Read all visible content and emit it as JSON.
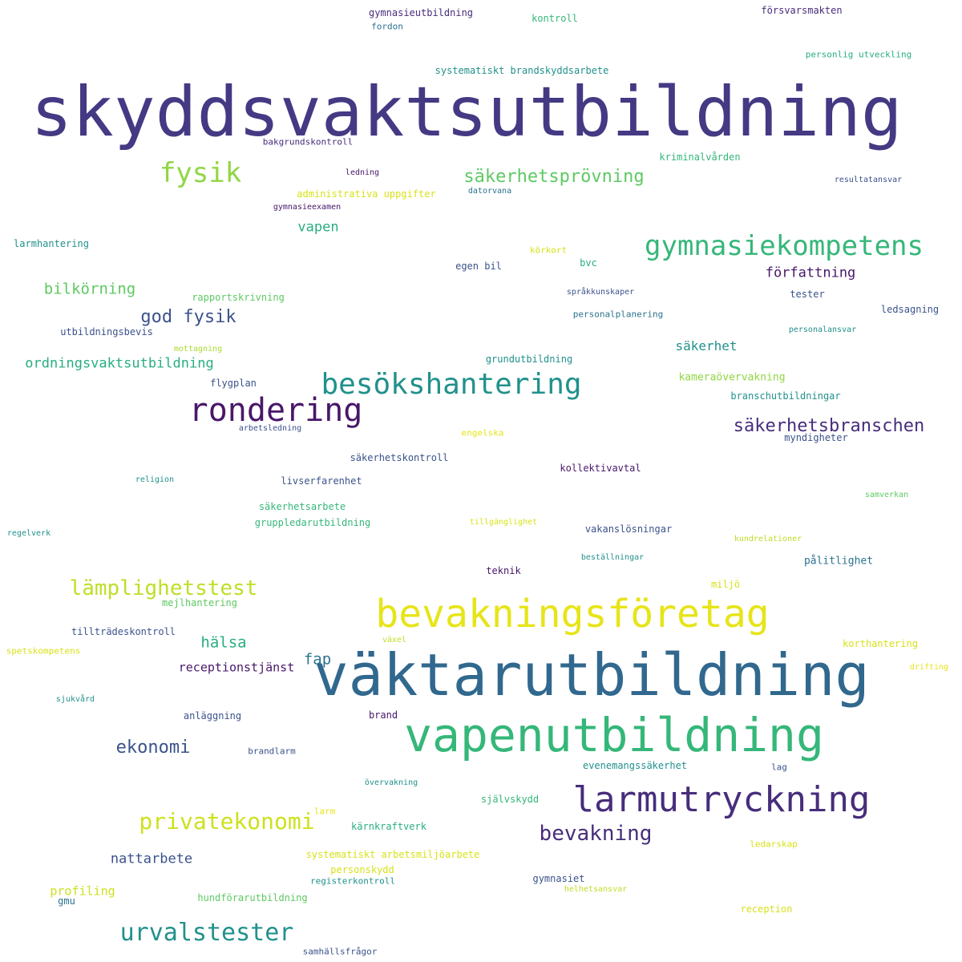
{
  "palette": {
    "indigo": "#443983",
    "deep_purple": "#481769",
    "dark_purple": "#472d7b",
    "blue": "#31688e",
    "steel_blue": "#3b528b",
    "teal": "#21918c",
    "teal_blue": "#2c728e",
    "sea_green": "#28ae80",
    "green": "#35b779",
    "light_green": "#5ec962",
    "lime": "#90d743",
    "yellow_green": "#addc30",
    "yellow": "#e7e419",
    "bright_yellow": "#fde725"
  },
  "words": [
    {
      "text": "skyddsvaktsutbildning",
      "color": "#443983"
    },
    {
      "text": "väktarutbildning",
      "color": "#31688e"
    },
    {
      "text": "vapenutbildning",
      "color": "#35b779"
    },
    {
      "text": "bevakningsföretag",
      "color": "#e7e419"
    },
    {
      "text": "larmutryckning",
      "color": "#472d7b"
    },
    {
      "text": "rondering",
      "color": "#481769"
    },
    {
      "text": "besökshantering",
      "color": "#21918c"
    },
    {
      "text": "gymnasiekompetens",
      "color": "#35b779"
    },
    {
      "text": "fysik",
      "color": "#90d743"
    },
    {
      "text": "urvalstester",
      "color": "#21918c"
    },
    {
      "text": "privatekonomi",
      "color": "#cde11d"
    },
    {
      "text": "lämplighetstest",
      "color": "#bddf26"
    },
    {
      "text": "bevakning",
      "color": "#472d7b"
    },
    {
      "text": "säkerhetsbranschen",
      "color": "#472d7b"
    },
    {
      "text": "säkerhetsprövning",
      "color": "#5ec962"
    },
    {
      "text": "god fysik",
      "color": "#3b528b"
    },
    {
      "text": "ekonomi",
      "color": "#3b528b"
    },
    {
      "text": "ordningsvaktsutbildning",
      "color": "#28ae80"
    },
    {
      "text": "bilkörning",
      "color": "#5ec962"
    },
    {
      "text": "hälsa",
      "color": "#28ae80"
    },
    {
      "text": "fap",
      "color": "#2c728e"
    },
    {
      "text": "författning",
      "color": "#481769"
    },
    {
      "text": "nattarbete",
      "color": "#3b528b"
    },
    {
      "text": "vapen",
      "color": "#28ae80"
    },
    {
      "text": "säkerhet",
      "color": "#21918c"
    },
    {
      "text": "receptionstjänst",
      "color": "#481769"
    },
    {
      "text": "profiling",
      "color": "#cde11d"
    },
    {
      "text": "gymnasieutbildning",
      "color": "#472d7b"
    },
    {
      "text": "fordon",
      "color": "#2c728e"
    },
    {
      "text": "kontroll",
      "color": "#35b779"
    },
    {
      "text": "försvarsmakten",
      "color": "#472d7b"
    },
    {
      "text": "personlig utveckling",
      "color": "#28ae80"
    },
    {
      "text": "systematiskt brandskyddsarbete",
      "color": "#21918c"
    },
    {
      "text": "bakgrundskontroll",
      "color": "#472d7b"
    },
    {
      "text": "kriminalvården",
      "color": "#35b779"
    },
    {
      "text": "ledning",
      "color": "#481769"
    },
    {
      "text": "datorvana",
      "color": "#2c728e"
    },
    {
      "text": "resultatansvar",
      "color": "#3b528b"
    },
    {
      "text": "administrativa uppgifter",
      "color": "#d8e219"
    },
    {
      "text": "gymnasieexamen",
      "color": "#481769"
    },
    {
      "text": "larmhantering",
      "color": "#21918c"
    },
    {
      "text": "körkort",
      "color": "#d8e219"
    },
    {
      "text": "bvc",
      "color": "#28ae80"
    },
    {
      "text": "egen bil",
      "color": "#3b528b"
    },
    {
      "text": "rapportskrivning",
      "color": "#5ec962"
    },
    {
      "text": "språkkunskaper",
      "color": "#3b528b"
    },
    {
      "text": "tester",
      "color": "#3b528b"
    },
    {
      "text": "ledsagning",
      "color": "#3b528b"
    },
    {
      "text": "personalplanering",
      "color": "#2c728e"
    },
    {
      "text": "utbildningsbevis",
      "color": "#3b528b"
    },
    {
      "text": "personalansvar",
      "color": "#21918c"
    },
    {
      "text": "mottagning",
      "color": "#addc30"
    },
    {
      "text": "grundutbildning",
      "color": "#21918c"
    },
    {
      "text": "kameraövervakning",
      "color": "#90d743"
    },
    {
      "text": "flygplan",
      "color": "#3b528b"
    },
    {
      "text": "branschutbildningar",
      "color": "#21918c"
    },
    {
      "text": "arbetsledning",
      "color": "#3b528b"
    },
    {
      "text": "engelska",
      "color": "#e7e419"
    },
    {
      "text": "myndigheter",
      "color": "#3b528b"
    },
    {
      "text": "säkerhetskontroll",
      "color": "#3b528b"
    },
    {
      "text": "religion",
      "color": "#21918c"
    },
    {
      "text": "livserfarenhet",
      "color": "#3b528b"
    },
    {
      "text": "kollektivavtal",
      "color": "#481769"
    },
    {
      "text": "samverkan",
      "color": "#5ec962"
    },
    {
      "text": "säkerhetsarbete",
      "color": "#35b779"
    },
    {
      "text": "gruppledarutbildning",
      "color": "#35b779"
    },
    {
      "text": "tillgänglighet",
      "color": "#d8e219"
    },
    {
      "text": "vakanslösningar",
      "color": "#3b528b"
    },
    {
      "text": "regelverk",
      "color": "#21918c"
    },
    {
      "text": "kundrelationer",
      "color": "#bddf26"
    },
    {
      "text": "beställningar",
      "color": "#21918c"
    },
    {
      "text": "pålitlighet",
      "color": "#2c728e"
    },
    {
      "text": "teknik",
      "color": "#481769"
    },
    {
      "text": "miljö",
      "color": "#d8e219"
    },
    {
      "text": "mejlhantering",
      "color": "#5ec962"
    },
    {
      "text": "tillträdeskontroll",
      "color": "#3b528b"
    },
    {
      "text": "växel",
      "color": "#bddf26"
    },
    {
      "text": "korthantering",
      "color": "#d8e219"
    },
    {
      "text": "spetskompetens",
      "color": "#d8e219"
    },
    {
      "text": "drifting",
      "color": "#e7e419"
    },
    {
      "text": "sjukvård",
      "color": "#21918c"
    },
    {
      "text": "anläggning",
      "color": "#3b528b"
    },
    {
      "text": "brand",
      "color": "#481769"
    },
    {
      "text": "brandlarm",
      "color": "#3b528b"
    },
    {
      "text": "evenemangssäkerhet",
      "color": "#21918c"
    },
    {
      "text": "lag",
      "color": "#3b528b"
    },
    {
      "text": "övervakning",
      "color": "#21918c"
    },
    {
      "text": "självskydd",
      "color": "#35b779"
    },
    {
      "text": "larm",
      "color": "#e7e419"
    },
    {
      "text": "kärnkraftverk",
      "color": "#28ae80"
    },
    {
      "text": "ledarskap",
      "color": "#d8e219"
    },
    {
      "text": "systematiskt arbetsmiljöarbete",
      "color": "#d8e219"
    },
    {
      "text": "personskydd",
      "color": "#d8e219"
    },
    {
      "text": "registerkontroll",
      "color": "#21918c"
    },
    {
      "text": "gymnasiet",
      "color": "#3b528b"
    },
    {
      "text": "helhetsansvar",
      "color": "#bddf26"
    },
    {
      "text": "gmu",
      "color": "#2c728e"
    },
    {
      "text": "hundförarutbildning",
      "color": "#5ec962"
    },
    {
      "text": "reception",
      "color": "#d8e219"
    },
    {
      "text": "samhällsfrågor",
      "color": "#3b528b"
    }
  ]
}
